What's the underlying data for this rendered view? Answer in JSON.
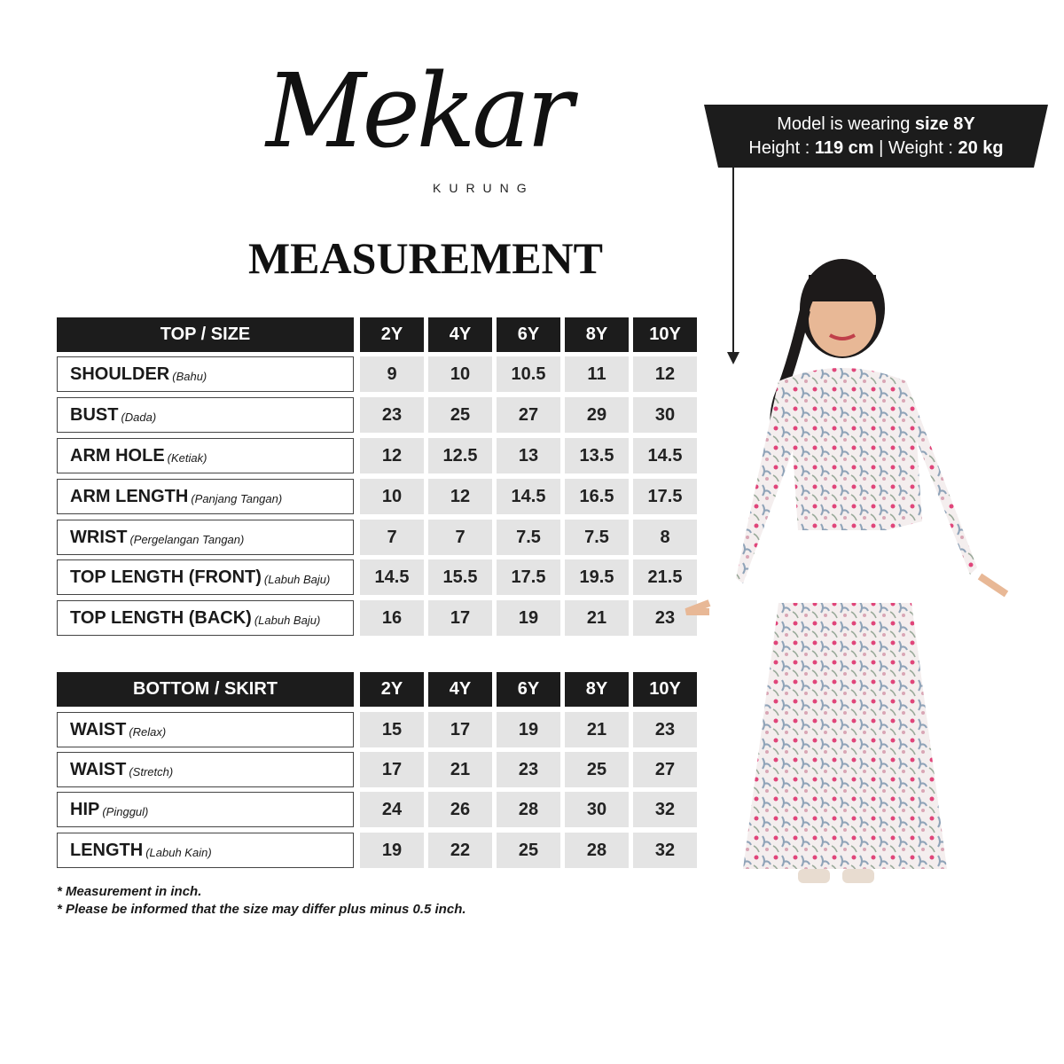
{
  "logo": {
    "script": "Mekar",
    "sub": "KURUNG"
  },
  "title": "MEASUREMENT",
  "sizes": [
    "2Y",
    "4Y",
    "6Y",
    "8Y",
    "10Y"
  ],
  "top_table": {
    "header": "TOP / SIZE",
    "rows": [
      {
        "label": "SHOULDER",
        "sub": "(Bahu)",
        "values": [
          "9",
          "10",
          "10.5",
          "11",
          "12"
        ]
      },
      {
        "label": "BUST",
        "sub": "(Dada)",
        "values": [
          "23",
          "25",
          "27",
          "29",
          "30"
        ]
      },
      {
        "label": "ARM HOLE",
        "sub": "(Ketiak)",
        "values": [
          "12",
          "12.5",
          "13",
          "13.5",
          "14.5"
        ]
      },
      {
        "label": "ARM LENGTH",
        "sub": "(Panjang Tangan)",
        "values": [
          "10",
          "12",
          "14.5",
          "16.5",
          "17.5"
        ]
      },
      {
        "label": "WRIST",
        "sub": "(Pergelangan Tangan)",
        "values": [
          "7",
          "7",
          "7.5",
          "7.5",
          "8"
        ]
      },
      {
        "label": "TOP LENGTH (FRONT)",
        "sub": "(Labuh Baju)",
        "values": [
          "14.5",
          "15.5",
          "17.5",
          "19.5",
          "21.5"
        ]
      },
      {
        "label": "TOP LENGTH (BACK)",
        "sub": "(Labuh Baju)",
        "values": [
          "16",
          "17",
          "19",
          "21",
          "23"
        ]
      }
    ]
  },
  "bottom_table": {
    "header": "BOTTOM / SKIRT",
    "rows": [
      {
        "label": "WAIST",
        "sub": "(Relax)",
        "values": [
          "15",
          "17",
          "19",
          "21",
          "23"
        ]
      },
      {
        "label": "WAIST",
        "sub": "(Stretch)",
        "values": [
          "17",
          "21",
          "23",
          "25",
          "27"
        ]
      },
      {
        "label": "HIP",
        "sub": "(Pinggul)",
        "values": [
          "24",
          "26",
          "28",
          "30",
          "32"
        ]
      },
      {
        "label": "LENGTH",
        "sub": "(Labuh Kain)",
        "values": [
          "19",
          "22",
          "25",
          "28",
          "32"
        ]
      }
    ]
  },
  "notes": [
    "* Measurement in inch.",
    "* Please be informed that the size may differ plus minus 0.5 inch."
  ],
  "model": {
    "line1_prefix": "Model is wearing ",
    "line1_bold": "size 8Y",
    "height_label": "Height : ",
    "height_value": "119 cm",
    "sep": " | ",
    "weight_label": "Weight : ",
    "weight_value": "20 kg"
  },
  "colors": {
    "header_bg": "#1c1c1c",
    "cell_bg": "#e4e4e4",
    "print_pink": "#e0457a",
    "print_blue": "#8fa3b8"
  }
}
